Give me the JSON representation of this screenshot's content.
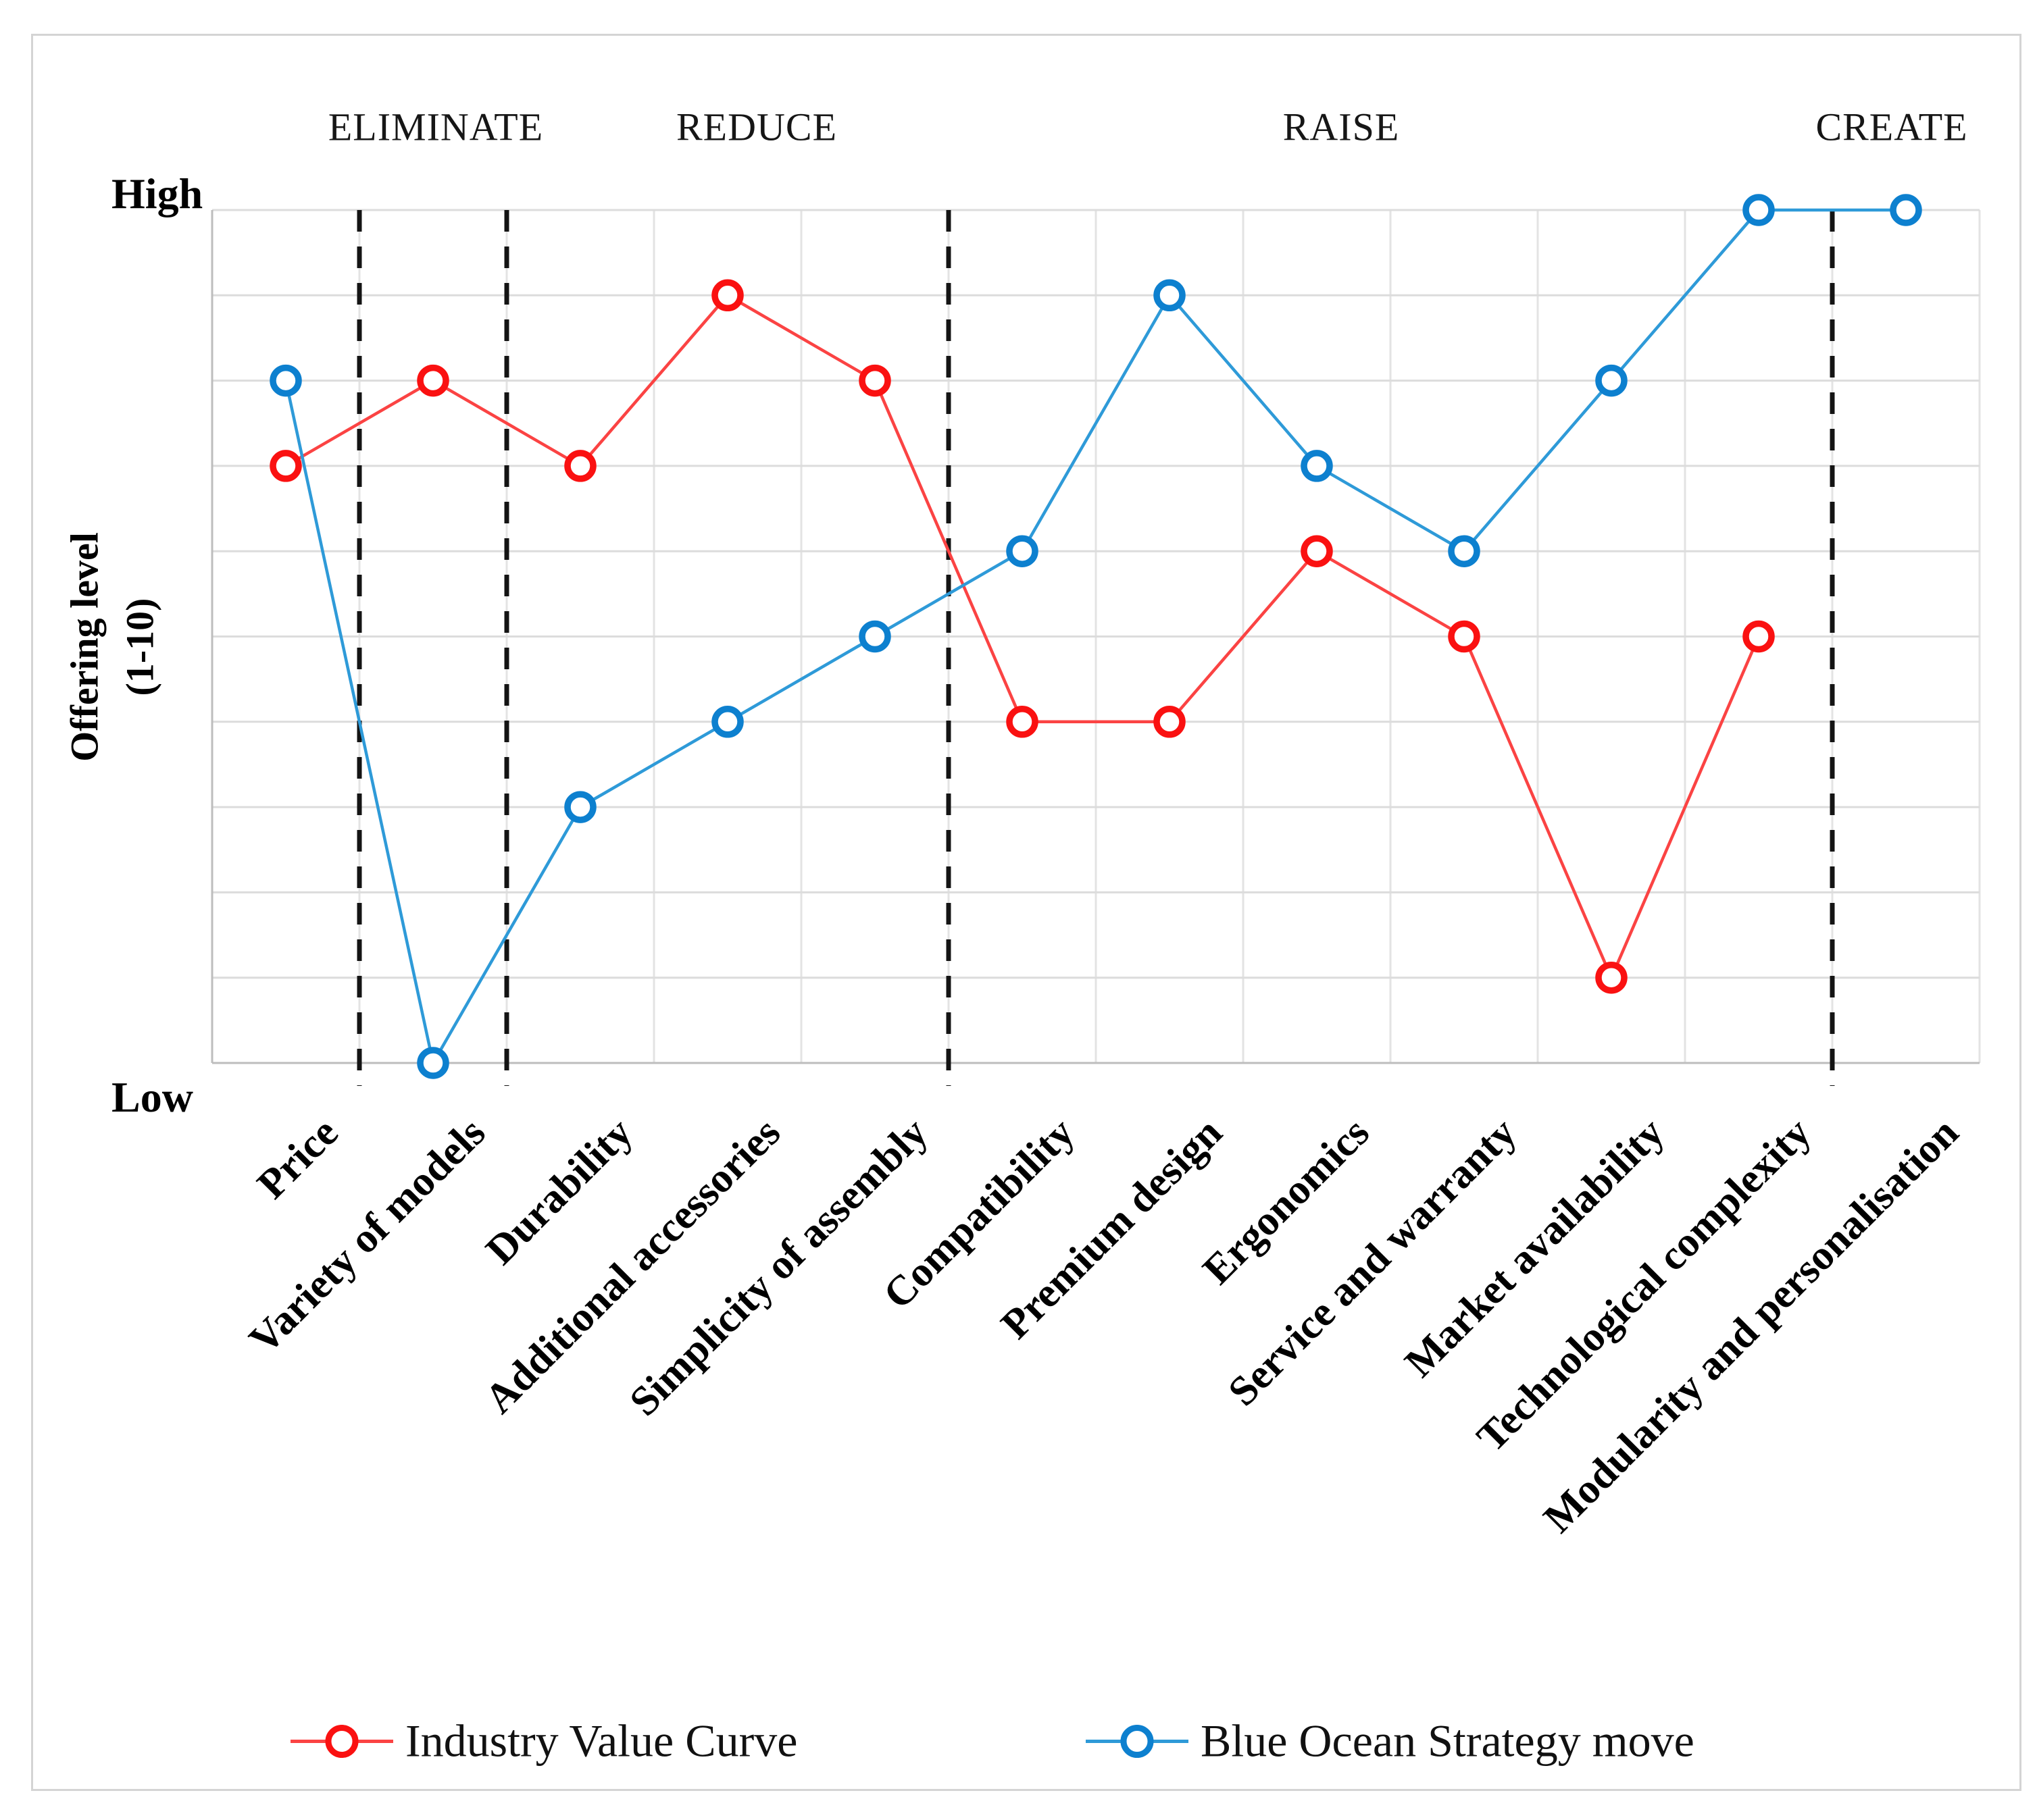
{
  "chart_data": {
    "type": "line",
    "title": "",
    "categories": [
      "Price",
      "Variety of models",
      "Durability",
      "Additional accessories",
      "Simplicity of assembly",
      "Compatibility",
      "Premium design",
      "Ergonomics",
      "Service and warranty",
      "Market availability",
      "Technological complexity",
      "Modularity and personalisation"
    ],
    "series": [
      {
        "name": "Industry Value Curve",
        "marker_color": "#fa1111",
        "line_color": "#fb4343",
        "values": [
          7,
          8,
          7,
          9,
          8,
          4,
          4,
          6,
          5,
          1,
          5,
          null
        ]
      },
      {
        "name": "Blue Ocean Strategy move",
        "marker_color": "#0d80cf",
        "line_color": "#2e9ad8",
        "values": [
          8,
          0,
          3,
          4,
          5,
          6,
          9,
          7,
          6,
          8,
          10,
          10
        ]
      }
    ],
    "ylabel": "Offering level (1-10)",
    "ylabel_lines": [
      "Offering level",
      "(1-10)"
    ],
    "y_axis_endpoint_labels": {
      "top": "High",
      "bottom": "Low"
    },
    "ylim": [
      0,
      10
    ],
    "grid": true,
    "legend_position": "bottom",
    "sections": [
      {
        "label": "ELIMINATE",
        "categories": [
          "Variety of models"
        ]
      },
      {
        "label": "REDUCE",
        "categories": [
          "Durability",
          "Additional accessories",
          "Simplicity of assembly"
        ]
      },
      {
        "label": "RAISE",
        "categories": [
          "Compatibility",
          "Premium design",
          "Ergonomics",
          "Service and warranty",
          "Market availability",
          "Technological complexity"
        ]
      },
      {
        "label": "CREATE",
        "categories": [
          "Modularity and personalisation"
        ]
      }
    ],
    "separators_after_category_index": [
      0,
      1,
      4,
      10
    ],
    "colors": {
      "gridline": "#dcdcdc",
      "vertical_gridline": "#e3e3e3",
      "axis_spine": "#bdbdbd",
      "separator": "#141414",
      "marker_fill": "#ffffff"
    }
  }
}
